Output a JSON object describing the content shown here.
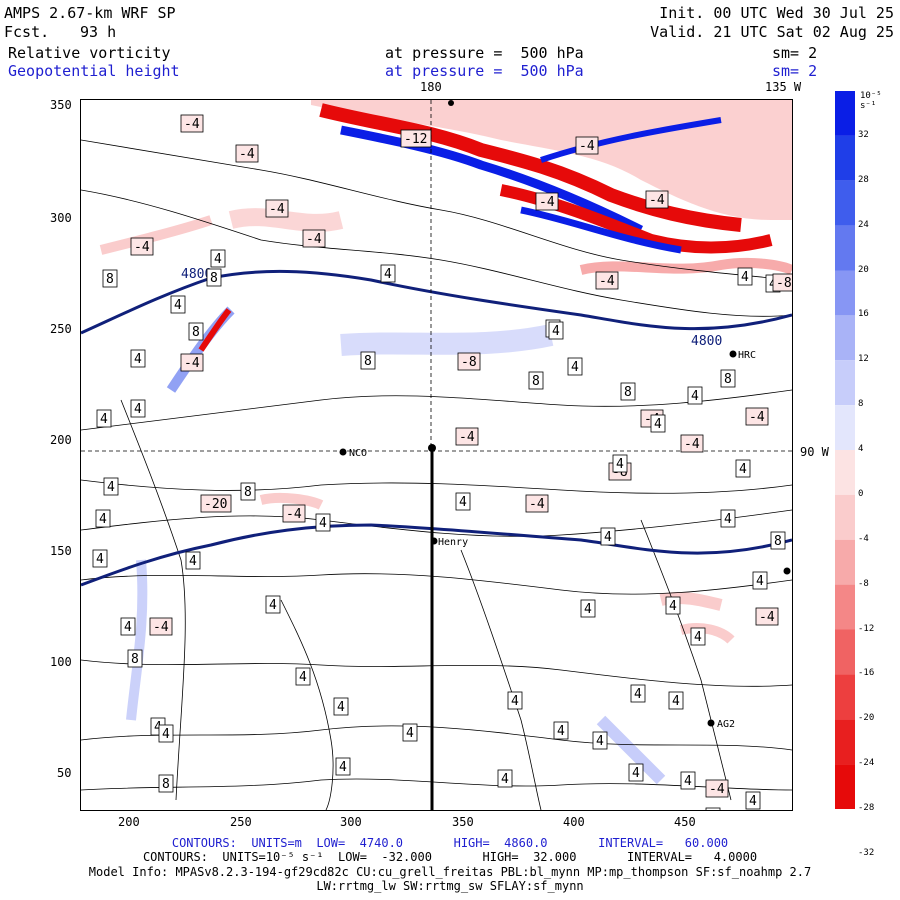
{
  "header": {
    "model": "AMPS 2.67-km WRF SP",
    "init": "Init. 00 UTC Wed 30 Jul 25",
    "fcst_label": "Fcst.",
    "fcst_value": "93 h",
    "valid": "Valid. 21 UTC Sat 02 Aug 25",
    "field1": "Relative vorticity",
    "field2": "Geopotential height",
    "level1": "at pressure =  500 hPa",
    "level2": "at pressure =  500 hPa",
    "sm1": "sm= 2",
    "sm2": "sm= 2"
  },
  "map": {
    "top_lon_labels": [
      "180",
      "135 W"
    ],
    "right_lat_label": "90 W",
    "x_ticks": [
      "200",
      "250",
      "300",
      "350",
      "400",
      "450"
    ],
    "y_ticks": [
      "350",
      "300",
      "250",
      "200",
      "150",
      "100",
      "50"
    ],
    "stations": [
      "NCO",
      "Henry",
      "HRC",
      "AG2"
    ],
    "height_contour_labels": [
      "4800",
      "4800"
    ],
    "vorticity_labels": [
      "-4",
      "-4",
      "-4",
      "-12",
      "-4",
      "-4",
      "4",
      "-4",
      "-4",
      "-4",
      "4",
      "8",
      "-8",
      "8",
      "-4",
      "-4",
      "-20",
      "-4",
      "-8",
      "8",
      "8",
      "8",
      "4",
      "8",
      "-4",
      "4",
      "4",
      "8",
      "-4",
      "4",
      "8",
      "4",
      "4",
      "4",
      "8",
      "4",
      "4",
      "4",
      "-4",
      "-8",
      "-4",
      "4",
      "4",
      "4",
      "4",
      "4",
      "4",
      "4",
      "-4",
      "4",
      "4",
      "4",
      "4",
      "4",
      "-4",
      "4",
      "4",
      "-4",
      "4",
      "8",
      "8",
      "4",
      "4",
      "4",
      "4",
      "4",
      "4",
      "4",
      "4",
      "4",
      "4",
      "4",
      "4",
      "4",
      "8",
      "4",
      "4",
      "-4",
      "4",
      "4"
    ]
  },
  "colorbar": {
    "unit": "10⁻⁵ s⁻¹",
    "labels": [
      "32",
      "28",
      "24",
      "20",
      "16",
      "12",
      "8",
      "4",
      "0",
      "-4",
      "-8",
      "-12",
      "-16",
      "-20",
      "-24",
      "-28",
      "-32"
    ],
    "colors": [
      "#0a1ee6",
      "#1f3ee8",
      "#3f5ded",
      "#6379f0",
      "#8796f4",
      "#a9b3f7",
      "#c7cdfa",
      "#e3e6fc",
      "#fce3e3",
      "#facccc",
      "#f7aaaa",
      "#f48787",
      "#f06363",
      "#ed3f3f",
      "#e81f1f",
      "#e60a0a"
    ]
  },
  "footer": {
    "line1": "CONTOURS:  UNITS=m  LOW=  4740.0       HIGH=  4860.0       INTERVAL=   60.000",
    "line2": "CONTOURS:  UNITS=10⁻⁵ s⁻¹  LOW=  -32.000       HIGH=  32.000       INTERVAL=   4.0000",
    "line3": "Model Info: MPASv8.2.3-194-gf29cd82c CU:cu_grell_freitas PBL:bl_mynn MP:mp_thompson SF:sf_noahmp 2.7",
    "line4": "LW:rrtmg_lw SW:rrtmg_sw SFLAY:sf_mynn"
  }
}
